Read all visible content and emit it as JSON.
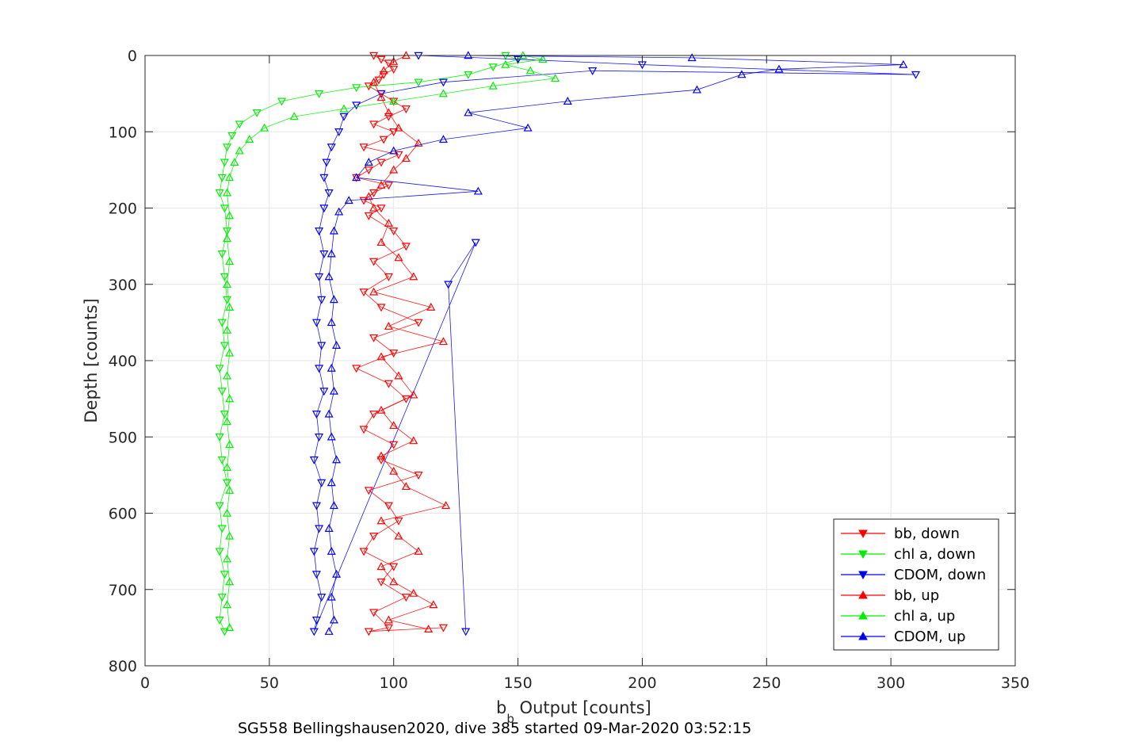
{
  "chart_data": {
    "type": "scatter",
    "xlabel_main": "b",
    "xlabel_sub": "b",
    "xlabel_rest": " Output [counts]",
    "ylabel": "Depth [counts]",
    "caption": "SG558 Bellingshausen2020, dive 385 started 09-Mar-2020 03:52:15",
    "xlim": [
      0,
      350
    ],
    "ylim": [
      0,
      800
    ],
    "y_reversed": true,
    "grid": true,
    "legend_position": "bottom-right",
    "xticks": [
      "0",
      "50",
      "100",
      "150",
      "200",
      "250",
      "300",
      "350"
    ],
    "yticks": [
      "0",
      "100",
      "200",
      "300",
      "400",
      "500",
      "600",
      "700",
      "800"
    ],
    "xtick_values": [
      0,
      50,
      100,
      150,
      200,
      250,
      300,
      350
    ],
    "ytick_values": [
      0,
      100,
      200,
      300,
      400,
      500,
      600,
      700,
      800
    ],
    "series": [
      {
        "name": "bb, down",
        "color": "#ff0000",
        "marker": "triangle-down",
        "points": [
          [
            92,
            0
          ],
          [
            95,
            5
          ],
          [
            98,
            10
          ],
          [
            100,
            18
          ],
          [
            96,
            25
          ],
          [
            94,
            32
          ],
          [
            90,
            40
          ],
          [
            95,
            50
          ],
          [
            100,
            60
          ],
          [
            105,
            70
          ],
          [
            98,
            80
          ],
          [
            92,
            90
          ],
          [
            100,
            100
          ],
          [
            96,
            110
          ],
          [
            88,
            120
          ],
          [
            102,
            130
          ],
          [
            95,
            140
          ],
          [
            90,
            150
          ],
          [
            85,
            160
          ],
          [
            98,
            170
          ],
          [
            92,
            180
          ],
          [
            88,
            190
          ],
          [
            95,
            200
          ],
          [
            90,
            210
          ],
          [
            100,
            230
          ],
          [
            105,
            250
          ],
          [
            92,
            270
          ],
          [
            98,
            290
          ],
          [
            88,
            310
          ],
          [
            95,
            330
          ],
          [
            110,
            350
          ],
          [
            92,
            370
          ],
          [
            100,
            390
          ],
          [
            85,
            410
          ],
          [
            98,
            430
          ],
          [
            105,
            450
          ],
          [
            92,
            470
          ],
          [
            88,
            490
          ],
          [
            100,
            510
          ],
          [
            95,
            530
          ],
          [
            110,
            550
          ],
          [
            90,
            570
          ],
          [
            98,
            590
          ],
          [
            102,
            610
          ],
          [
            92,
            630
          ],
          [
            88,
            650
          ],
          [
            100,
            670
          ],
          [
            95,
            690
          ],
          [
            105,
            710
          ],
          [
            92,
            730
          ],
          [
            98,
            750
          ],
          [
            90,
            755
          ],
          [
            120,
            750
          ]
        ]
      },
      {
        "name": "chl a, down",
        "color": "#00ee00",
        "marker": "triangle-down",
        "points": [
          [
            145,
            0
          ],
          [
            150,
            5
          ],
          [
            140,
            15
          ],
          [
            130,
            25
          ],
          [
            110,
            35
          ],
          [
            85,
            42
          ],
          [
            70,
            50
          ],
          [
            55,
            60
          ],
          [
            45,
            75
          ],
          [
            38,
            90
          ],
          [
            35,
            105
          ],
          [
            33,
            120
          ],
          [
            32,
            140
          ],
          [
            31,
            160
          ],
          [
            30,
            180
          ],
          [
            32,
            200
          ],
          [
            33,
            230
          ],
          [
            31,
            260
          ],
          [
            32,
            290
          ],
          [
            33,
            320
          ],
          [
            31,
            350
          ],
          [
            32,
            380
          ],
          [
            30,
            410
          ],
          [
            31,
            440
          ],
          [
            32,
            470
          ],
          [
            30,
            500
          ],
          [
            31,
            530
          ],
          [
            33,
            560
          ],
          [
            30,
            590
          ],
          [
            31,
            620
          ],
          [
            30,
            650
          ],
          [
            32,
            680
          ],
          [
            31,
            710
          ],
          [
            30,
            740
          ],
          [
            32,
            755
          ]
        ]
      },
      {
        "name": "CDOM, down",
        "color": "#0000ee",
        "marker": "triangle-down",
        "points": [
          [
            110,
            0
          ],
          [
            150,
            5
          ],
          [
            200,
            12
          ],
          [
            310,
            25
          ],
          [
            180,
            20
          ],
          [
            120,
            35
          ],
          [
            95,
            50
          ],
          [
            85,
            65
          ],
          [
            80,
            80
          ],
          [
            78,
            100
          ],
          [
            75,
            120
          ],
          [
            73,
            140
          ],
          [
            72,
            160
          ],
          [
            74,
            180
          ],
          [
            72,
            200
          ],
          [
            70,
            230
          ],
          [
            72,
            260
          ],
          [
            70,
            290
          ],
          [
            71,
            320
          ],
          [
            69,
            350
          ],
          [
            71,
            380
          ],
          [
            70,
            410
          ],
          [
            72,
            440
          ],
          [
            69,
            470
          ],
          [
            70,
            500
          ],
          [
            68,
            530
          ],
          [
            71,
            560
          ],
          [
            69,
            590
          ],
          [
            70,
            620
          ],
          [
            68,
            650
          ],
          [
            69,
            680
          ],
          [
            71,
            710
          ],
          [
            69,
            740
          ],
          [
            68,
            755
          ],
          [
            133,
            245
          ],
          [
            122,
            300
          ],
          [
            129,
            755
          ]
        ]
      },
      {
        "name": "bb, up",
        "color": "#ff0000",
        "marker": "triangle-up",
        "points": [
          [
            105,
            0
          ],
          [
            100,
            8
          ],
          [
            96,
            20
          ],
          [
            92,
            35
          ],
          [
            95,
            55
          ],
          [
            98,
            75
          ],
          [
            102,
            95
          ],
          [
            110,
            115
          ],
          [
            105,
            135
          ],
          [
            100,
            150
          ],
          [
            95,
            170
          ],
          [
            90,
            185
          ],
          [
            92,
            200
          ],
          [
            98,
            220
          ],
          [
            95,
            245
          ],
          [
            102,
            265
          ],
          [
            108,
            290
          ],
          [
            92,
            310
          ],
          [
            115,
            330
          ],
          [
            98,
            355
          ],
          [
            120,
            375
          ],
          [
            95,
            395
          ],
          [
            102,
            420
          ],
          [
            108,
            445
          ],
          [
            95,
            465
          ],
          [
            100,
            485
          ],
          [
            108,
            505
          ],
          [
            95,
            525
          ],
          [
            100,
            545
          ],
          [
            105,
            565
          ],
          [
            121,
            590
          ],
          [
            95,
            610
          ],
          [
            102,
            630
          ],
          [
            110,
            650
          ],
          [
            95,
            670
          ],
          [
            100,
            690
          ],
          [
            108,
            705
          ],
          [
            116,
            720
          ],
          [
            98,
            740
          ],
          [
            114,
            752
          ]
        ]
      },
      {
        "name": "chl a, up",
        "color": "#00ee00",
        "marker": "triangle-up",
        "points": [
          [
            152,
            0
          ],
          [
            160,
            5
          ],
          [
            145,
            12
          ],
          [
            155,
            20
          ],
          [
            165,
            30
          ],
          [
            140,
            40
          ],
          [
            120,
            50
          ],
          [
            100,
            60
          ],
          [
            80,
            70
          ],
          [
            60,
            80
          ],
          [
            48,
            95
          ],
          [
            42,
            110
          ],
          [
            38,
            125
          ],
          [
            36,
            140
          ],
          [
            34,
            160
          ],
          [
            33,
            180
          ],
          [
            34,
            210
          ],
          [
            33,
            240
          ],
          [
            34,
            270
          ],
          [
            33,
            300
          ],
          [
            34,
            330
          ],
          [
            33,
            360
          ],
          [
            34,
            390
          ],
          [
            33,
            420
          ],
          [
            34,
            450
          ],
          [
            33,
            480
          ],
          [
            34,
            510
          ],
          [
            33,
            540
          ],
          [
            34,
            570
          ],
          [
            33,
            600
          ],
          [
            34,
            630
          ],
          [
            33,
            660
          ],
          [
            34,
            690
          ],
          [
            33,
            720
          ],
          [
            34,
            750
          ]
        ]
      },
      {
        "name": "CDOM, up",
        "color": "#0000ee",
        "marker": "triangle-up",
        "points": [
          [
            130,
            0
          ],
          [
            220,
            3
          ],
          [
            305,
            12
          ],
          [
            255,
            18
          ],
          [
            240,
            25
          ],
          [
            222,
            45
          ],
          [
            170,
            60
          ],
          [
            130,
            75
          ],
          [
            154,
            95
          ],
          [
            120,
            110
          ],
          [
            100,
            125
          ],
          [
            90,
            140
          ],
          [
            85,
            160
          ],
          [
            134,
            178
          ],
          [
            82,
            190
          ],
          [
            78,
            205
          ],
          [
            76,
            230
          ],
          [
            75,
            260
          ],
          [
            74,
            290
          ],
          [
            76,
            320
          ],
          [
            75,
            350
          ],
          [
            77,
            380
          ],
          [
            75,
            410
          ],
          [
            76,
            440
          ],
          [
            74,
            470
          ],
          [
            75,
            500
          ],
          [
            77,
            530
          ],
          [
            75,
            560
          ],
          [
            76,
            590
          ],
          [
            74,
            620
          ],
          [
            75,
            650
          ],
          [
            77,
            680
          ],
          [
            75,
            710
          ],
          [
            76,
            740
          ],
          [
            74,
            755
          ]
        ]
      }
    ]
  }
}
